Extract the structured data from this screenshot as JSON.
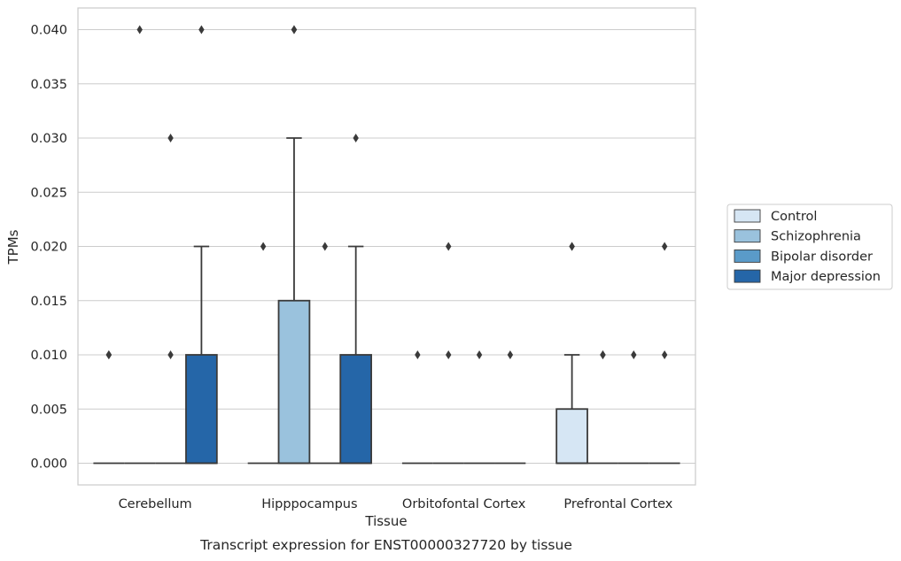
{
  "chart_data": {
    "type": "box",
    "title": "Transcript expression for ENST00000327720 by tissue",
    "xlabel": "Tissue",
    "ylabel": "TPMs",
    "ylim": [
      -0.002,
      0.042
    ],
    "yticks": [
      0.0,
      0.005,
      0.01,
      0.015,
      0.02,
      0.025,
      0.03,
      0.035,
      0.04
    ],
    "ytick_labels": [
      "0.000",
      "0.005",
      "0.010",
      "0.015",
      "0.020",
      "0.025",
      "0.030",
      "0.035",
      "0.040"
    ],
    "grid": true,
    "legend_position": "right",
    "categories": [
      "Cerebellum",
      "Hipppocampus",
      "Orbitofontal Cortex",
      "Prefrontal Cortex"
    ],
    "series": [
      {
        "name": "Control",
        "color": "#d6e6f4",
        "boxes": [
          {
            "q1": 0.0,
            "median": 0.0,
            "q3": 0.0,
            "whisker_low": 0.0,
            "whisker_high": 0.0,
            "outliers": [
              0.01,
              0.01,
              0.01
            ]
          },
          {
            "q1": 0.0,
            "median": 0.0,
            "q3": 0.0,
            "whisker_low": 0.0,
            "whisker_high": 0.0,
            "outliers": [
              0.02
            ]
          },
          {
            "q1": 0.0,
            "median": 0.0,
            "q3": 0.0,
            "whisker_low": 0.0,
            "whisker_high": 0.0,
            "outliers": [
              0.01
            ]
          },
          {
            "q1": 0.0,
            "median": 0.0,
            "q3": 0.005,
            "whisker_low": 0.0,
            "whisker_high": 0.01,
            "outliers": [
              0.02,
              0.02
            ]
          }
        ]
      },
      {
        "name": "Schizophrenia",
        "color": "#9ac2dd",
        "boxes": [
          {
            "q1": 0.0,
            "median": 0.0,
            "q3": 0.0,
            "whisker_low": 0.0,
            "whisker_high": 0.0,
            "outliers": [
              0.04
            ]
          },
          {
            "q1": 0.0,
            "median": 0.0,
            "q3": 0.015,
            "whisker_low": 0.0,
            "whisker_high": 0.03,
            "outliers": [
              0.04,
              0.04
            ]
          },
          {
            "q1": 0.0,
            "median": 0.0,
            "q3": 0.0,
            "whisker_low": 0.0,
            "whisker_high": 0.0,
            "outliers": [
              0.02,
              0.01
            ]
          },
          {
            "q1": 0.0,
            "median": 0.0,
            "q3": 0.0,
            "whisker_low": 0.0,
            "whisker_high": 0.0,
            "outliers": [
              0.01,
              0.01
            ]
          }
        ]
      },
      {
        "name": "Bipolar disorder",
        "color": "#5a9bc9",
        "boxes": [
          {
            "q1": 0.0,
            "median": 0.0,
            "q3": 0.0,
            "whisker_low": 0.0,
            "whisker_high": 0.0,
            "outliers": [
              0.03,
              0.01
            ]
          },
          {
            "q1": 0.0,
            "median": 0.0,
            "q3": 0.0,
            "whisker_low": 0.0,
            "whisker_high": 0.0,
            "outliers": [
              0.02
            ]
          },
          {
            "q1": 0.0,
            "median": 0.0,
            "q3": 0.0,
            "whisker_low": 0.0,
            "whisker_high": 0.0,
            "outliers": [
              0.01
            ]
          },
          {
            "q1": 0.0,
            "median": 0.0,
            "q3": 0.0,
            "whisker_low": 0.0,
            "whisker_high": 0.0,
            "outliers": [
              0.01
            ]
          }
        ]
      },
      {
        "name": "Major depression",
        "color": "#2566a8",
        "boxes": [
          {
            "q1": 0.0,
            "median": 0.0,
            "q3": 0.01,
            "whisker_low": 0.0,
            "whisker_high": 0.02,
            "outliers": [
              0.04
            ]
          },
          {
            "q1": 0.0,
            "median": 0.0,
            "q3": 0.01,
            "whisker_low": 0.0,
            "whisker_high": 0.02,
            "outliers": [
              0.03
            ]
          },
          {
            "q1": 0.0,
            "median": 0.0,
            "q3": 0.0,
            "whisker_low": 0.0,
            "whisker_high": 0.0,
            "outliers": [
              0.01
            ]
          },
          {
            "q1": 0.0,
            "median": 0.0,
            "q3": 0.0,
            "whisker_low": 0.0,
            "whisker_high": 0.0,
            "outliers": [
              0.02,
              0.01
            ]
          }
        ]
      }
    ]
  },
  "colors": {
    "background": "#ffffff",
    "grid": "#cccccc",
    "axes_frame": "#cccccc",
    "box_edge": "#3a3a3a",
    "text": "#262626"
  }
}
